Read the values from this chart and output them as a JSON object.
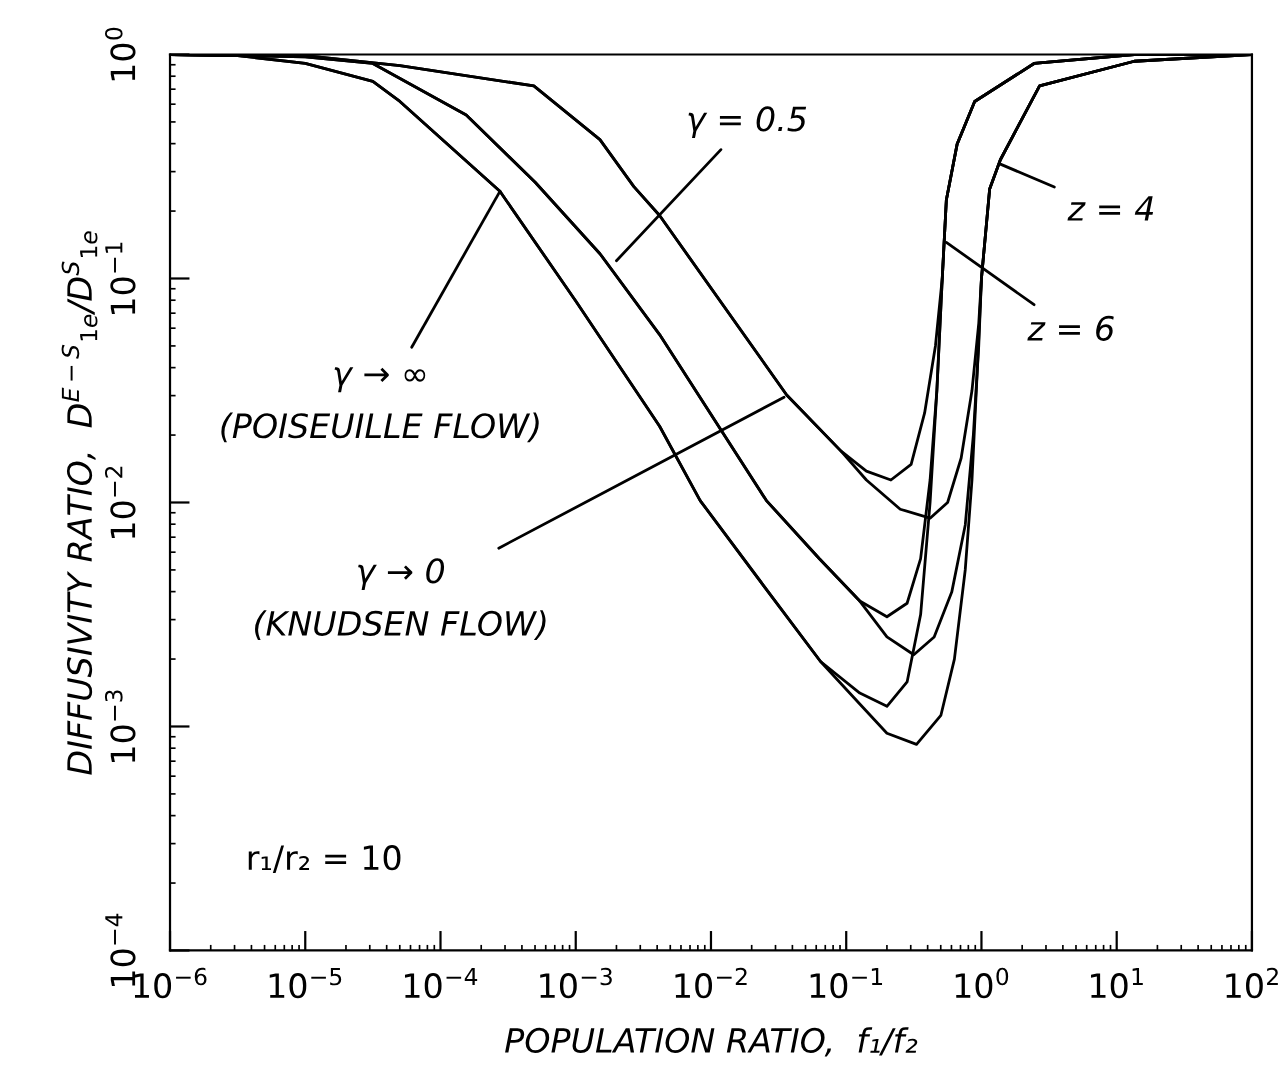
{
  "chart_data": {
    "type": "line",
    "xlabel": "POPULATION RATIO,  f₁/f₂",
    "ylabel": "DIFFUSIVITY RATIO,  D$^{E−S}$$_{1e}$/D$^{S}$$_{1e}$",
    "log": "xy",
    "grid": false,
    "legend": false,
    "marker": "none",
    "line_style": "solid",
    "xlim": [
      1e-06,
      100
    ],
    "ylim": [
      0.0001,
      1
    ],
    "xticks": [
      {
        "value": 1e-06,
        "label": "10$^{−6}$"
      },
      {
        "value": 1e-05,
        "label": "10$^{−5}$"
      },
      {
        "value": 0.0001,
        "label": "10$^{−4}$"
      },
      {
        "value": 0.001,
        "label": "10$^{−3}$"
      },
      {
        "value": 0.01,
        "label": "10$^{−2}$"
      },
      {
        "value": 0.1,
        "label": "10$^{−1}$"
      },
      {
        "value": 1,
        "label": "10$^{0}$"
      },
      {
        "value": 10,
        "label": "10$^{1}$"
      },
      {
        "value": 100,
        "label": "10$^{2}$"
      }
    ],
    "yticks": [
      {
        "value": 0.0001,
        "label": "10$^{−4}$"
      },
      {
        "value": 0.001,
        "label": "10$^{−3}$"
      },
      {
        "value": 0.01,
        "label": "10$^{−2}$"
      },
      {
        "value": 0.1,
        "label": "10$^{−1}$"
      },
      {
        "value": 1,
        "label": "10$^{0}$"
      }
    ],
    "series": [
      {
        "color": "#000000",
        "x": [
          1e-06,
          3.16e-06,
          1e-05,
          3.16e-05,
          5.01e-05,
          0.000275,
          0.001,
          0.00417,
          0.00832,
          0.0251,
          0.0646,
          0.126,
          0.2,
          0.282,
          0.355,
          0.417,
          0.468,
          0.513,
          0.55,
          0.661,
          0.891,
          2.45,
          13.5,
          100
        ],
        "values": [
          1,
          0.989,
          0.912,
          0.759,
          0.617,
          0.245,
          0.0794,
          0.0219,
          0.0102,
          0.00417,
          0.00195,
          0.00141,
          0.00123,
          0.00158,
          0.00316,
          0.01,
          0.0316,
          0.1,
          0.224,
          0.398,
          0.617,
          0.912,
          1,
          1
        ]
      },
      {
        "color": "#000000",
        "x": [
          1e-06,
          3.16e-06,
          1e-05,
          3.16e-05,
          5.01e-05,
          0.000275,
          0.001,
          0.00417,
          0.00832,
          0.0251,
          0.0646,
          0.126,
          0.2,
          0.331,
          0.501,
          0.631,
          0.759,
          0.851,
          0.933,
          1,
          1.15,
          1.38,
          2.69,
          13.5,
          100
        ],
        "values": [
          1,
          0.989,
          0.912,
          0.759,
          0.617,
          0.245,
          0.0794,
          0.0219,
          0.0102,
          0.00417,
          0.00195,
          0.00126,
          0.000933,
          0.000832,
          0.00112,
          0.002,
          0.00501,
          0.0126,
          0.0398,
          0.1,
          0.251,
          0.339,
          0.724,
          0.933,
          1
        ]
      },
      {
        "color": "#000000",
        "x": [
          1e-06,
          1e-05,
          3.16e-05,
          0.000155,
          0.000501,
          0.00151,
          0.00417,
          0.0257,
          0.0631,
          0.126,
          0.2,
          0.282,
          0.355,
          0.417,
          0.468,
          0.513,
          0.55,
          0.661,
          0.891,
          2.45,
          13.5,
          100
        ],
        "values": [
          1,
          0.977,
          0.912,
          0.537,
          0.269,
          0.129,
          0.0562,
          0.0102,
          0.00562,
          0.00363,
          0.00309,
          0.00355,
          0.00562,
          0.0126,
          0.0316,
          0.1,
          0.224,
          0.398,
          0.617,
          0.912,
          1,
          1
        ]
      },
      {
        "color": "#000000",
        "x": [
          1e-06,
          1e-05,
          3.16e-05,
          0.000155,
          0.000501,
          0.00151,
          0.00417,
          0.0257,
          0.0631,
          0.126,
          0.2,
          0.316,
          0.447,
          0.603,
          0.759,
          0.871,
          0.955,
          1,
          1.15,
          1.38,
          2.69,
          13.5,
          100
        ],
        "values": [
          1,
          0.977,
          0.912,
          0.537,
          0.269,
          0.129,
          0.0562,
          0.0102,
          0.00562,
          0.00363,
          0.00251,
          0.00209,
          0.00251,
          0.00398,
          0.00794,
          0.02,
          0.0501,
          0.1,
          0.251,
          0.339,
          0.724,
          0.933,
          1
        ]
      },
      {
        "color": "#000000",
        "x": [
          1e-06,
          1e-05,
          5.01e-05,
          0.00049,
          0.00151,
          0.00269,
          0.00417,
          0.0363,
          0.0912,
          0.141,
          0.214,
          0.302,
          0.38,
          0.457,
          0.513,
          0.55,
          0.661,
          0.891,
          2.45,
          13.5,
          100
        ],
        "values": [
          1,
          0.989,
          0.891,
          0.724,
          0.417,
          0.257,
          0.191,
          0.0302,
          0.017,
          0.0138,
          0.0126,
          0.0148,
          0.0251,
          0.0501,
          0.1,
          0.224,
          0.398,
          0.617,
          0.912,
          1,
          1
        ]
      },
      {
        "color": "#000000",
        "x": [
          1e-06,
          1e-05,
          5.01e-05,
          0.00049,
          0.00151,
          0.00269,
          0.00417,
          0.0363,
          0.0912,
          0.141,
          0.251,
          0.417,
          0.562,
          0.708,
          0.851,
          0.955,
          1,
          1.15,
          1.38,
          2.69,
          13.5,
          100
        ],
        "values": [
          1,
          0.989,
          0.891,
          0.724,
          0.417,
          0.257,
          0.191,
          0.0302,
          0.017,
          0.0126,
          0.00933,
          0.00851,
          0.01,
          0.0158,
          0.0316,
          0.0631,
          0.1,
          0.251,
          0.339,
          0.724,
          0.933,
          1
        ]
      }
    ],
    "annotations": [
      {
        "text": "γ = 0.5",
        "x": 0.002,
        "y": 0.12
      },
      {
        "text": "γ → ∞\n(POISEUILLE FLOW)",
        "x": 0.000275,
        "y": 0.245
      },
      {
        "text": "γ → 0\n(KNUDSEN FLOW)",
        "x": 0.0347,
        "y": 0.0295
      },
      {
        "text": "z = 4",
        "x": 1.38,
        "y": 0.324
      },
      {
        "text": "z = 6",
        "x": 0.55,
        "y": 0.145
      },
      "r₁/r₂ = 10"
    ]
  }
}
